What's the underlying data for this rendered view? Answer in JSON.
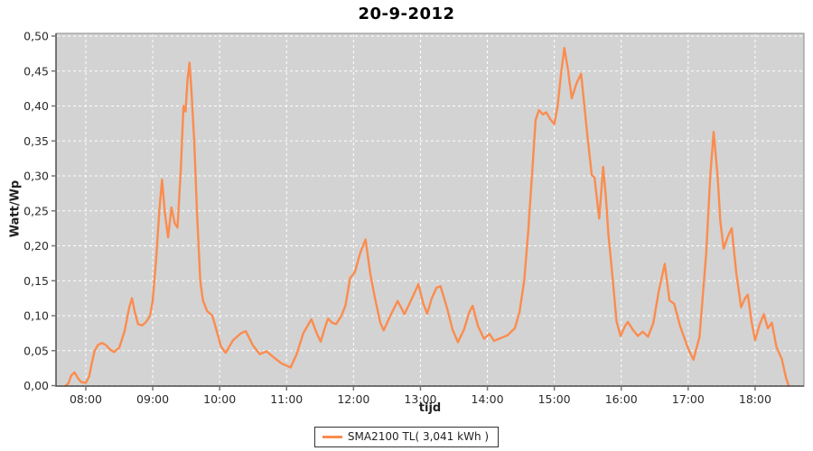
{
  "chart_data": {
    "type": "line",
    "title": "20-9-2012",
    "xlabel": "tijd",
    "ylabel": "Watt/Wp",
    "legend_label": "SMA2100 TL( 3,041 kWh )",
    "legend_position": "bottom",
    "grid": true,
    "colors": {
      "series": "#fb8c4e",
      "plot_bg": "#d3d3d3",
      "gridline": "#ffffff",
      "plot_border": "#8a8a8a",
      "axis_line": "#444444",
      "tick": "#777777",
      "text": "#2b2b2b"
    },
    "axes": {
      "x_min": 7.555,
      "x_max": 18.73,
      "y_min": 0.0,
      "y_max": 0.5,
      "x_ticks": [
        {
          "t": 8,
          "label": "08:00"
        },
        {
          "t": 9,
          "label": "09:00"
        },
        {
          "t": 10,
          "label": "10:00"
        },
        {
          "t": 11,
          "label": "11:00"
        },
        {
          "t": 12,
          "label": "12:00"
        },
        {
          "t": 13,
          "label": "13:00"
        },
        {
          "t": 14,
          "label": "14:00"
        },
        {
          "t": 15,
          "label": "15:00"
        },
        {
          "t": 16,
          "label": "16:00"
        },
        {
          "t": 17,
          "label": "17:00"
        },
        {
          "t": 18,
          "label": "18:00"
        }
      ],
      "y_ticks": [
        {
          "v": 0.0,
          "label": "0,00"
        },
        {
          "v": 0.05,
          "label": "0,05"
        },
        {
          "v": 0.1,
          "label": "0,10"
        },
        {
          "v": 0.15,
          "label": "0,15"
        },
        {
          "v": 0.2,
          "label": "0,20"
        },
        {
          "v": 0.25,
          "label": "0,25"
        },
        {
          "v": 0.3,
          "label": "0,30"
        },
        {
          "v": 0.35,
          "label": "0,35"
        },
        {
          "v": 0.4,
          "label": "0,40"
        },
        {
          "v": 0.45,
          "label": "0,45"
        },
        {
          "v": 0.5,
          "label": "0,50"
        }
      ]
    },
    "series": [
      {
        "name": "SMA2100 TL( 3,041 kWh )",
        "points": [
          [
            7.7,
            0.0
          ],
          [
            7.74,
            0.003
          ],
          [
            7.78,
            0.014
          ],
          [
            7.83,
            0.019
          ],
          [
            7.88,
            0.011
          ],
          [
            7.93,
            0.005
          ],
          [
            8.0,
            0.004
          ],
          [
            8.05,
            0.013
          ],
          [
            8.09,
            0.032
          ],
          [
            8.13,
            0.049
          ],
          [
            8.18,
            0.058
          ],
          [
            8.24,
            0.061
          ],
          [
            8.3,
            0.058
          ],
          [
            8.36,
            0.052
          ],
          [
            8.42,
            0.048
          ],
          [
            8.5,
            0.054
          ],
          [
            8.58,
            0.078
          ],
          [
            8.65,
            0.112
          ],
          [
            8.69,
            0.125
          ],
          [
            8.73,
            0.106
          ],
          [
            8.78,
            0.088
          ],
          [
            8.84,
            0.086
          ],
          [
            8.9,
            0.091
          ],
          [
            8.96,
            0.1
          ],
          [
            9.0,
            0.122
          ],
          [
            9.05,
            0.18
          ],
          [
            9.1,
            0.252
          ],
          [
            9.14,
            0.295
          ],
          [
            9.18,
            0.248
          ],
          [
            9.23,
            0.212
          ],
          [
            9.28,
            0.255
          ],
          [
            9.33,
            0.232
          ],
          [
            9.37,
            0.226
          ],
          [
            9.42,
            0.31
          ],
          [
            9.46,
            0.4
          ],
          [
            9.49,
            0.392
          ],
          [
            9.52,
            0.438
          ],
          [
            9.55,
            0.462
          ],
          [
            9.58,
            0.42
          ],
          [
            9.62,
            0.35
          ],
          [
            9.66,
            0.25
          ],
          [
            9.71,
            0.15
          ],
          [
            9.75,
            0.122
          ],
          [
            9.81,
            0.107
          ],
          [
            9.89,
            0.1
          ],
          [
            9.95,
            0.08
          ],
          [
            10.02,
            0.056
          ],
          [
            10.09,
            0.047
          ],
          [
            10.2,
            0.065
          ],
          [
            10.32,
            0.075
          ],
          [
            10.39,
            0.078
          ],
          [
            10.5,
            0.057
          ],
          [
            10.6,
            0.045
          ],
          [
            10.7,
            0.049
          ],
          [
            10.8,
            0.041
          ],
          [
            10.92,
            0.032
          ],
          [
            11.06,
            0.026
          ],
          [
            11.15,
            0.045
          ],
          [
            11.25,
            0.075
          ],
          [
            11.37,
            0.095
          ],
          [
            11.45,
            0.075
          ],
          [
            11.51,
            0.063
          ],
          [
            11.58,
            0.085
          ],
          [
            11.62,
            0.096
          ],
          [
            11.68,
            0.09
          ],
          [
            11.74,
            0.088
          ],
          [
            11.82,
            0.1
          ],
          [
            11.88,
            0.115
          ],
          [
            11.95,
            0.154
          ],
          [
            12.02,
            0.162
          ],
          [
            12.1,
            0.19
          ],
          [
            12.18,
            0.209
          ],
          [
            12.25,
            0.16
          ],
          [
            12.32,
            0.125
          ],
          [
            12.4,
            0.09
          ],
          [
            12.45,
            0.079
          ],
          [
            12.55,
            0.1
          ],
          [
            12.66,
            0.121
          ],
          [
            12.72,
            0.11
          ],
          [
            12.76,
            0.102
          ],
          [
            12.85,
            0.12
          ],
          [
            12.97,
            0.145
          ],
          [
            13.04,
            0.118
          ],
          [
            13.1,
            0.103
          ],
          [
            13.17,
            0.125
          ],
          [
            13.24,
            0.14
          ],
          [
            13.3,
            0.142
          ],
          [
            13.4,
            0.11
          ],
          [
            13.48,
            0.08
          ],
          [
            13.56,
            0.062
          ],
          [
            13.65,
            0.08
          ],
          [
            13.73,
            0.105
          ],
          [
            13.78,
            0.114
          ],
          [
            13.86,
            0.085
          ],
          [
            13.95,
            0.067
          ],
          [
            14.03,
            0.074
          ],
          [
            14.1,
            0.064
          ],
          [
            14.2,
            0.068
          ],
          [
            14.3,
            0.072
          ],
          [
            14.41,
            0.082
          ],
          [
            14.48,
            0.105
          ],
          [
            14.55,
            0.15
          ],
          [
            14.61,
            0.22
          ],
          [
            14.68,
            0.32
          ],
          [
            14.72,
            0.38
          ],
          [
            14.77,
            0.394
          ],
          [
            14.83,
            0.388
          ],
          [
            14.88,
            0.391
          ],
          [
            14.94,
            0.381
          ],
          [
            15.0,
            0.374
          ],
          [
            15.05,
            0.4
          ],
          [
            15.1,
            0.445
          ],
          [
            15.15,
            0.483
          ],
          [
            15.2,
            0.455
          ],
          [
            15.26,
            0.411
          ],
          [
            15.33,
            0.432
          ],
          [
            15.4,
            0.446
          ],
          [
            15.49,
            0.362
          ],
          [
            15.56,
            0.301
          ],
          [
            15.6,
            0.298
          ],
          [
            15.67,
            0.239
          ],
          [
            15.73,
            0.313
          ],
          [
            15.77,
            0.27
          ],
          [
            15.81,
            0.215
          ],
          [
            15.87,
            0.155
          ],
          [
            15.93,
            0.092
          ],
          [
            15.99,
            0.071
          ],
          [
            16.06,
            0.086
          ],
          [
            16.1,
            0.091
          ],
          [
            16.18,
            0.079
          ],
          [
            16.25,
            0.071
          ],
          [
            16.32,
            0.077
          ],
          [
            16.4,
            0.07
          ],
          [
            16.48,
            0.09
          ],
          [
            16.56,
            0.135
          ],
          [
            16.65,
            0.174
          ],
          [
            16.72,
            0.122
          ],
          [
            16.79,
            0.117
          ],
          [
            16.88,
            0.085
          ],
          [
            17.0,
            0.053
          ],
          [
            17.08,
            0.037
          ],
          [
            17.17,
            0.07
          ],
          [
            17.27,
            0.19
          ],
          [
            17.33,
            0.3
          ],
          [
            17.38,
            0.363
          ],
          [
            17.44,
            0.3
          ],
          [
            17.48,
            0.235
          ],
          [
            17.53,
            0.196
          ],
          [
            17.6,
            0.215
          ],
          [
            17.65,
            0.225
          ],
          [
            17.72,
            0.16
          ],
          [
            17.79,
            0.112
          ],
          [
            17.85,
            0.125
          ],
          [
            17.89,
            0.13
          ],
          [
            17.95,
            0.09
          ],
          [
            18.0,
            0.065
          ],
          [
            18.07,
            0.088
          ],
          [
            18.13,
            0.102
          ],
          [
            18.19,
            0.082
          ],
          [
            18.25,
            0.09
          ],
          [
            18.32,
            0.055
          ],
          [
            18.4,
            0.038
          ],
          [
            18.46,
            0.012
          ],
          [
            18.5,
            0.0
          ]
        ]
      }
    ]
  }
}
